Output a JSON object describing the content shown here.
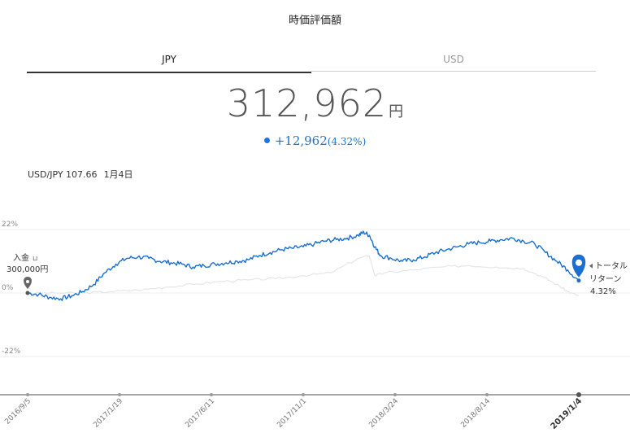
{
  "header": {
    "title": "時価評価額"
  },
  "tabs": [
    {
      "label": "JPY",
      "active": true
    },
    {
      "label": "USD",
      "active": false
    }
  ],
  "summary": {
    "value": "312,962",
    "unit": "円",
    "change": "+12,962",
    "change_pct": "(4.32%)"
  },
  "fx": {
    "label": "USD/JPY 107.66",
    "date": "1月4日"
  },
  "deposit": {
    "label": "入金",
    "amount": "300,000円"
  },
  "total_return": {
    "label_1": "トータル",
    "label_2": "リターン",
    "value": "4.32%"
  },
  "colors": {
    "accent": "#1a6fd0",
    "benchmark": "#e6e8ec",
    "text": "#333333"
  },
  "chart_data": {
    "type": "line",
    "y_ticks": [
      {
        "value": 22,
        "label": "22%"
      },
      {
        "value": 0,
        "label": "0%"
      },
      {
        "value": -22,
        "label": "-22%"
      }
    ],
    "ylim": [
      -33,
      22
    ],
    "x_ticks": [
      "2016/9/5",
      "2017/1/19",
      "2017/6/11",
      "2017/11/1",
      "2018/3/24",
      "2018/8/14",
      "2019/1/4"
    ],
    "series": [
      {
        "role": "portfolio",
        "color": "#1a6fd0",
        "points": [
          [
            0,
            0
          ],
          [
            2,
            -0.5
          ],
          [
            4,
            -1.5
          ],
          [
            6,
            -2
          ],
          [
            8,
            -1
          ],
          [
            10,
            0.5
          ],
          [
            12,
            3
          ],
          [
            14,
            7
          ],
          [
            16,
            10
          ],
          [
            18,
            12
          ],
          [
            20,
            12.5
          ],
          [
            22,
            12
          ],
          [
            24,
            11
          ],
          [
            26,
            10.5
          ],
          [
            28,
            10
          ],
          [
            30,
            9
          ],
          [
            32,
            9.5
          ],
          [
            34,
            10
          ],
          [
            36,
            10.5
          ],
          [
            38,
            11
          ],
          [
            40,
            11.5
          ],
          [
            42,
            13
          ],
          [
            44,
            14
          ],
          [
            46,
            15
          ],
          [
            48,
            15.5
          ],
          [
            50,
            16
          ],
          [
            52,
            17
          ],
          [
            54,
            18
          ],
          [
            56,
            18.5
          ],
          [
            58,
            19
          ],
          [
            60,
            20
          ],
          [
            61,
            21
          ],
          [
            62,
            20
          ],
          [
            63,
            16
          ],
          [
            64,
            13
          ],
          [
            66,
            12
          ],
          [
            68,
            11
          ],
          [
            70,
            11.5
          ],
          [
            72,
            12.5
          ],
          [
            74,
            14
          ],
          [
            76,
            15
          ],
          [
            78,
            16
          ],
          [
            80,
            17
          ],
          [
            82,
            17.5
          ],
          [
            84,
            18
          ],
          [
            86,
            18.5
          ],
          [
            88,
            19
          ],
          [
            90,
            18
          ],
          [
            92,
            17
          ],
          [
            94,
            14
          ],
          [
            96,
            11
          ],
          [
            98,
            8
          ],
          [
            100,
            4.3
          ]
        ]
      },
      {
        "role": "benchmark",
        "color": "#e3e6ea",
        "points": [
          [
            0,
            0
          ],
          [
            5,
            0
          ],
          [
            10,
            0
          ],
          [
            15,
            0.5
          ],
          [
            20,
            1
          ],
          [
            25,
            2
          ],
          [
            30,
            3
          ],
          [
            35,
            4
          ],
          [
            40,
            4.5
          ],
          [
            45,
            5
          ],
          [
            50,
            6
          ],
          [
            55,
            7
          ],
          [
            60,
            12
          ],
          [
            62,
            13
          ],
          [
            63,
            6
          ],
          [
            65,
            7
          ],
          [
            70,
            8
          ],
          [
            75,
            9
          ],
          [
            80,
            9.5
          ],
          [
            85,
            9
          ],
          [
            90,
            8.5
          ],
          [
            93,
            6
          ],
          [
            96,
            3
          ],
          [
            98,
            0.5
          ],
          [
            100,
            -1
          ]
        ]
      }
    ]
  }
}
